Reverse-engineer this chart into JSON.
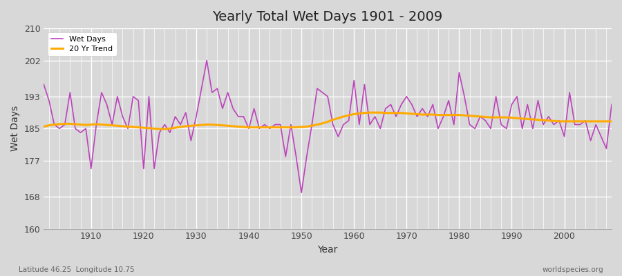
{
  "title": "Yearly Total Wet Days 1901 - 2009",
  "xlabel": "Year",
  "ylabel": "Wet Days",
  "footer_left": "Latitude 46.25  Longitude 10.75",
  "footer_right": "worldspecies.org",
  "legend_wet": "Wet Days",
  "legend_trend": "20 Yr Trend",
  "wet_color": "#bb44bb",
  "trend_color": "#ffaa00",
  "background_color": "#d8d8d8",
  "plot_bg_color": "#d8d8d8",
  "ylim": [
    160,
    210
  ],
  "yticks": [
    160,
    168,
    177,
    185,
    193,
    202,
    210
  ],
  "xlim": [
    1901,
    2009
  ],
  "xticks": [
    1910,
    1920,
    1930,
    1940,
    1950,
    1960,
    1970,
    1980,
    1990,
    2000
  ],
  "years": [
    1901,
    1902,
    1903,
    1904,
    1905,
    1906,
    1907,
    1908,
    1909,
    1910,
    1911,
    1912,
    1913,
    1914,
    1915,
    1916,
    1917,
    1918,
    1919,
    1920,
    1921,
    1922,
    1923,
    1924,
    1925,
    1926,
    1927,
    1928,
    1929,
    1930,
    1931,
    1932,
    1933,
    1934,
    1935,
    1936,
    1937,
    1938,
    1939,
    1940,
    1941,
    1942,
    1943,
    1944,
    1945,
    1946,
    1947,
    1948,
    1949,
    1950,
    1951,
    1952,
    1953,
    1954,
    1955,
    1956,
    1957,
    1958,
    1959,
    1960,
    1961,
    1962,
    1963,
    1964,
    1965,
    1966,
    1967,
    1968,
    1969,
    1970,
    1971,
    1972,
    1973,
    1974,
    1975,
    1976,
    1977,
    1978,
    1979,
    1980,
    1981,
    1982,
    1983,
    1984,
    1985,
    1986,
    1987,
    1988,
    1989,
    1990,
    1991,
    1992,
    1993,
    1994,
    1995,
    1996,
    1997,
    1998,
    1999,
    2000,
    2001,
    2002,
    2003,
    2004,
    2005,
    2006,
    2007,
    2008,
    2009
  ],
  "wet_days": [
    196,
    192,
    186,
    185,
    186,
    194,
    185,
    184,
    185,
    175,
    186,
    194,
    191,
    186,
    193,
    188,
    185,
    193,
    192,
    175,
    193,
    175,
    184,
    186,
    184,
    188,
    186,
    189,
    182,
    188,
    195,
    202,
    194,
    195,
    190,
    194,
    190,
    188,
    188,
    185,
    190,
    185,
    186,
    185,
    186,
    186,
    178,
    186,
    178,
    169,
    178,
    186,
    195,
    194,
    193,
    186,
    183,
    186,
    187,
    197,
    186,
    196,
    186,
    188,
    185,
    190,
    191,
    188,
    191,
    193,
    191,
    188,
    190,
    188,
    191,
    185,
    188,
    192,
    186,
    199,
    193,
    186,
    185,
    188,
    187,
    185,
    193,
    186,
    185,
    191,
    193,
    185,
    191,
    185,
    192,
    186,
    188,
    186,
    187,
    183,
    194,
    186,
    186,
    187,
    182,
    186,
    183,
    180,
    191
  ],
  "trend_years": [
    1901,
    1902,
    1903,
    1904,
    1905,
    1906,
    1907,
    1908,
    1909,
    1910,
    1911,
    1912,
    1913,
    1914,
    1915,
    1916,
    1917,
    1918,
    1919,
    1920,
    1921,
    1922,
    1923,
    1924,
    1925,
    1926,
    1927,
    1928,
    1929,
    1930,
    1931,
    1932,
    1933,
    1934,
    1935,
    1936,
    1937,
    1938,
    1939,
    1940,
    1941,
    1942,
    1943,
    1944,
    1945,
    1946,
    1947,
    1948,
    1949,
    1950,
    1951,
    1952,
    1953,
    1954,
    1955,
    1956,
    1957,
    1958,
    1959,
    1960,
    1961,
    1962,
    1963,
    1964,
    1965,
    1966,
    1967,
    1968,
    1969,
    1970,
    1971,
    1972,
    1973,
    1974,
    1975,
    1976,
    1977,
    1978,
    1979,
    1980,
    1981,
    1982,
    1983,
    1984,
    1985,
    1986,
    1987,
    1988,
    1989,
    1990,
    1991,
    1992,
    1993,
    1994,
    1995,
    1996,
    1997,
    1998,
    1999,
    2000,
    2001,
    2002,
    2003,
    2004,
    2005,
    2006,
    2007,
    2008,
    2009
  ],
  "trend_vals": [
    185.5,
    185.8,
    186.0,
    186.1,
    186.2,
    186.2,
    186.1,
    186.0,
    185.9,
    186.0,
    186.1,
    186.0,
    185.9,
    185.8,
    185.7,
    185.6,
    185.5,
    185.4,
    185.3,
    185.2,
    185.1,
    185.0,
    184.9,
    184.9,
    185.0,
    185.2,
    185.4,
    185.6,
    185.7,
    185.8,
    185.9,
    186.0,
    186.0,
    185.9,
    185.8,
    185.7,
    185.6,
    185.5,
    185.4,
    185.3,
    185.3,
    185.3,
    185.3,
    185.3,
    185.3,
    185.3,
    185.3,
    185.3,
    185.3,
    185.4,
    185.5,
    185.7,
    186.0,
    186.3,
    186.7,
    187.2,
    187.6,
    188.0,
    188.3,
    188.6,
    188.8,
    188.9,
    189.0,
    189.0,
    189.0,
    188.9,
    188.9,
    188.9,
    188.9,
    188.8,
    188.7,
    188.6,
    188.5,
    188.5,
    188.5,
    188.4,
    188.4,
    188.4,
    188.4,
    188.4,
    188.3,
    188.2,
    188.1,
    188.0,
    187.9,
    187.8,
    187.8,
    187.8,
    187.8,
    187.7,
    187.6,
    187.5,
    187.4,
    187.3,
    187.2,
    187.1,
    187.0,
    186.9,
    186.8,
    186.8,
    186.8,
    186.8,
    186.8,
    186.8,
    186.8,
    186.8,
    186.8,
    186.8,
    186.8
  ]
}
